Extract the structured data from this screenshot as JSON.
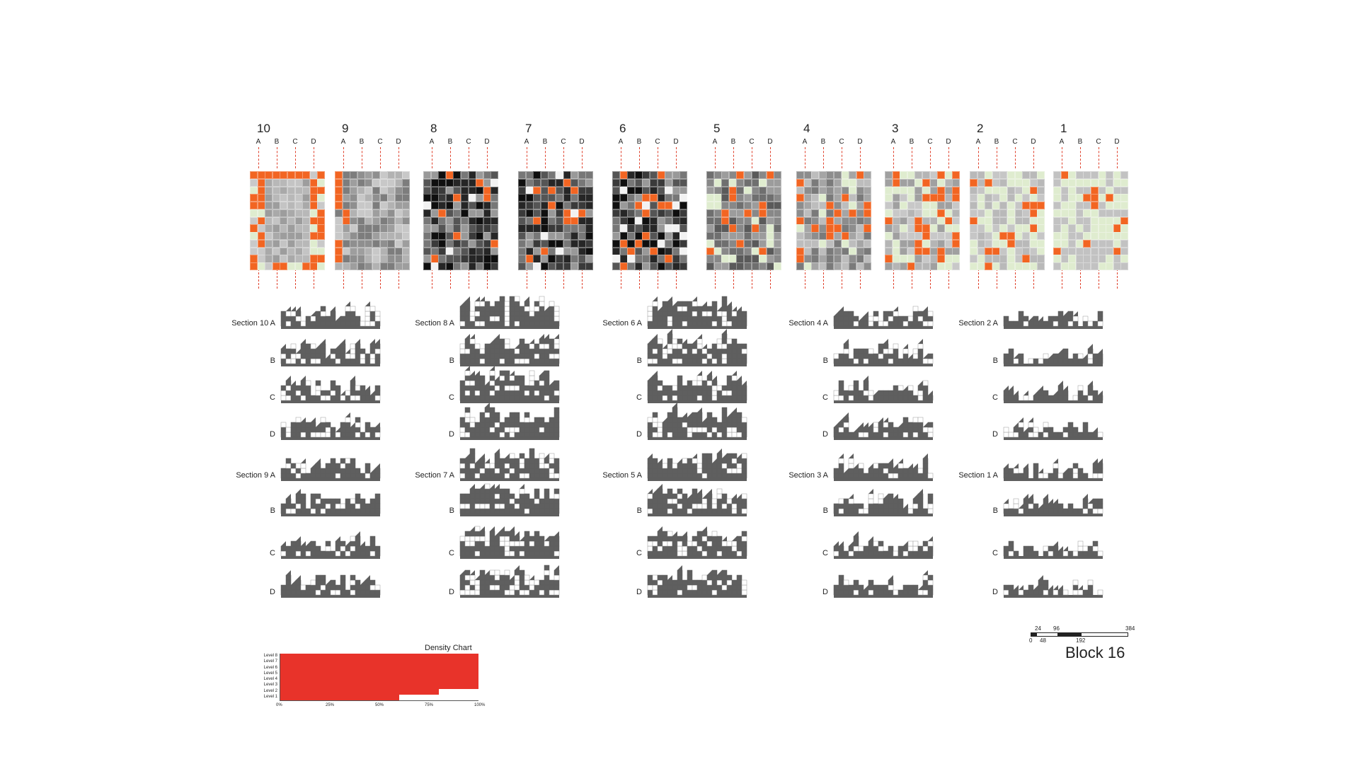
{
  "block_title": "Block 16",
  "colors": {
    "accent_orange": "#f26522",
    "density_red": "#e8332a",
    "mass_grey": "#5f5f5f",
    "open_green": "#dfeccf",
    "dashed_red": "#e0412c"
  },
  "plans": [
    {
      "number": "10",
      "letters": [
        "A",
        "B",
        "C",
        "D"
      ]
    },
    {
      "number": "9",
      "letters": [
        "A",
        "B",
        "C",
        "D"
      ]
    },
    {
      "number": "8",
      "letters": [
        "A",
        "B",
        "C",
        "D"
      ]
    },
    {
      "number": "7",
      "letters": [
        "A",
        "B",
        "C",
        "D"
      ]
    },
    {
      "number": "6",
      "letters": [
        "A",
        "B",
        "C",
        "D"
      ]
    },
    {
      "number": "5",
      "letters": [
        "A",
        "B",
        "C",
        "D"
      ]
    },
    {
      "number": "4",
      "letters": [
        "A",
        "B",
        "C",
        "D"
      ]
    },
    {
      "number": "3",
      "letters": [
        "A",
        "B",
        "C",
        "D"
      ]
    },
    {
      "number": "2",
      "letters": [
        "A",
        "B",
        "C",
        "D"
      ]
    },
    {
      "number": "1",
      "letters": [
        "A",
        "B",
        "C",
        "D"
      ]
    }
  ],
  "sections": {
    "col_1": {
      "top": {
        "title": "Section 10",
        "rows": [
          "A",
          "B",
          "C",
          "D"
        ]
      },
      "bottom": {
        "title": "Section 9",
        "rows": [
          "A",
          "B",
          "C",
          "D"
        ]
      }
    },
    "col_2": {
      "top": {
        "title": "Section 8",
        "rows": [
          "A",
          "B",
          "C",
          "D"
        ]
      },
      "bottom": {
        "title": "Section 7",
        "rows": [
          "A",
          "B",
          "C",
          "D"
        ]
      }
    },
    "col_3": {
      "top": {
        "title": "Section 6",
        "rows": [
          "A",
          "B",
          "C",
          "D"
        ]
      },
      "bottom": {
        "title": "Section 5",
        "rows": [
          "A",
          "B",
          "C",
          "D"
        ]
      }
    },
    "col_4": {
      "top": {
        "title": "Section 4",
        "rows": [
          "A",
          "B",
          "C",
          "D"
        ]
      },
      "bottom": {
        "title": "Section 3",
        "rows": [
          "A",
          "B",
          "C",
          "D"
        ]
      }
    },
    "col_5": {
      "top": {
        "title": "Section 2",
        "rows": [
          "A",
          "B",
          "C",
          "D"
        ]
      },
      "bottom": {
        "title": "Section 1",
        "rows": [
          "A",
          "B",
          "C",
          "D"
        ]
      }
    }
  },
  "scale_bar": {
    "top_labels": [
      "24",
      "96",
      "384"
    ],
    "bottom_labels": [
      "0",
      "48",
      "192"
    ]
  },
  "density_chart": {
    "title": "Density Chart",
    "levels": [
      "Level 8",
      "Level 7",
      "Level 6",
      "Level 5",
      "Level 4",
      "Level 3",
      "Level 2",
      "Level 1"
    ],
    "fill_fraction": [
      1.0,
      1.0,
      1.0,
      1.0,
      1.0,
      1.0,
      0.8,
      0.6
    ],
    "x_ticks": [
      "0%",
      "25%",
      "50%",
      "75%",
      "100%"
    ]
  }
}
